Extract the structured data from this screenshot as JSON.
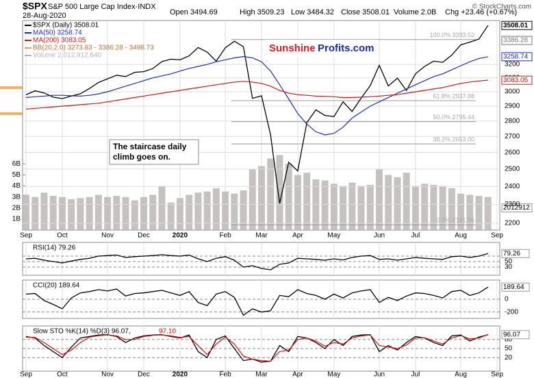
{
  "chart_data": [
    {
      "type": "line",
      "symbol": "$SPX",
      "title": "S&P 500 Large Cap Index·INDX",
      "date": "28-Aug-2020",
      "quote": [
        "Open 3494.69",
        "High 3509.23",
        "Low 3484.32",
        "Close 3508.01",
        "Volume 2.0B",
        "Chg +23.46 (+0.67%)"
      ],
      "copyright": "© StockCharts.com",
      "logo": [
        "Sunshine",
        "Profits.com"
      ],
      "annotation": [
        "The staircase daily",
        "climb goes on."
      ],
      "indicator_labels": [
        "BB(20,2.0) 3273.83 - 3386.28 - 3498.73"
      ],
      "categories": [
        "Sep",
        null,
        null,
        null,
        "Oct",
        null,
        null,
        null,
        null,
        "Nov",
        null,
        null,
        null,
        "Dec",
        null,
        null,
        null,
        "2020",
        null,
        null,
        null,
        null,
        "Feb",
        null,
        null,
        null,
        "Mar",
        null,
        null,
        null,
        "Apr",
        null,
        null,
        null,
        "May",
        null,
        null,
        null,
        null,
        "Jun",
        null,
        null,
        null,
        "Jul",
        null,
        null,
        null,
        null,
        "Aug",
        null,
        null,
        null,
        "Sep"
      ],
      "log": true,
      "ylim": [
        2165,
        3549
      ],
      "yticks": [
        2200,
        2300,
        2400,
        2500,
        2600,
        2700,
        2800,
        2900,
        3000,
        3100,
        3200
      ],
      "y2lim": [
        0,
        19
      ],
      "y2ticks": [
        {
          "value": 1,
          "label": "1B"
        },
        {
          "value": 2,
          "label": "2B"
        },
        {
          "value": 3,
          "label": "3B"
        },
        {
          "value": 4,
          "label": "4B"
        },
        {
          "value": 5,
          "label": "5B"
        },
        {
          "value": 6,
          "label": "6B"
        }
      ],
      "grid": true,
      "series": [
        {
          "name": "$SPX (Daily) 3508.01",
          "color": "#000000",
          "values": [
            2979,
            3007,
            2992,
            2962,
            2952,
            2970,
            2986,
            3023,
            3067,
            3093,
            3120,
            3110,
            3141,
            3146,
            3169,
            3221,
            3240,
            3235,
            3265,
            3330,
            3295,
            3225,
            3328,
            3380,
            3337,
            2954,
            2972,
            2711,
            2305,
            2541,
            2489,
            2790,
            2875,
            2837,
            2830,
            2930,
            2864,
            2955,
            3044,
            3193,
            3041,
            3098,
            3009,
            3130,
            3185,
            3225,
            3216,
            3271,
            3351,
            3373,
            3397,
            3508,
            null
          ]
        },
        {
          "name": "MA(50) 3258.74",
          "color": "#1f2fa8",
          "values": [
            2960,
            2965,
            2970,
            2975,
            2975,
            2972,
            2970,
            2975,
            2985,
            3000,
            3020,
            3040,
            3060,
            3080,
            3100,
            3115,
            3130,
            3150,
            3170,
            3185,
            3200,
            3220,
            3235,
            3250,
            3260,
            3250,
            3220,
            3150,
            3050,
            2950,
            2850,
            2780,
            2730,
            2710,
            2720,
            2760,
            2820,
            2860,
            2900,
            2930,
            2960,
            2990,
            3020,
            3050,
            3080,
            3110,
            3130,
            3160,
            3190,
            3220,
            3245,
            3259,
            null
          ]
        },
        {
          "name": "MA(200) 3083.05",
          "color": "#c41a1a",
          "values": [
            2880,
            2885,
            2890,
            2895,
            2900,
            2905,
            2910,
            2915,
            2920,
            2930,
            2940,
            2950,
            2960,
            2970,
            2980,
            2990,
            3000,
            3010,
            3020,
            3030,
            3040,
            3050,
            3060,
            3070,
            3075,
            3070,
            3060,
            3040,
            3010,
            2990,
            2980,
            2975,
            2970,
            2968,
            2965,
            2960,
            2960,
            2962,
            2965,
            2970,
            2975,
            2980,
            2990,
            3000,
            3010,
            3020,
            3030,
            3045,
            3060,
            3070,
            3078,
            3083,
            null
          ]
        },
        {
          "name": "Volume 2,012,912,640",
          "color": "#b9b3b3",
          "axis": "y2",
          "type": "bar",
          "values": [
            3.2,
            3.0,
            3.4,
            3.1,
            3.0,
            2.8,
            2.9,
            3.0,
            3.2,
            3.0,
            3.1,
            3.0,
            2.7,
            3.0,
            3.2,
            4.0,
            2.5,
            2.9,
            3.2,
            3.4,
            3.5,
            3.8,
            3.5,
            3.3,
            3.6,
            5.5,
            5.8,
            6.5,
            6.8,
            6.0,
            5.0,
            5.2,
            4.6,
            4.5,
            4.2,
            4.0,
            4.3,
            4.0,
            4.1,
            5.5,
            5.0,
            4.8,
            5.2,
            4.0,
            4.2,
            4.1,
            4.0,
            3.8,
            3.3,
            3.2,
            3.1,
            3.0,
            null
          ]
        }
      ],
      "fib_levels": [
        {
          "value": 3393.52,
          "label": "100.0% 3393.52"
        },
        {
          "value": 2937.88,
          "label": "61.8% 2937.88"
        },
        {
          "value": 2795.44,
          "label": "50.0% 2795.44"
        },
        {
          "value": 2653.0,
          "label": "38.2% 2653.00"
        },
        {
          "value": 2191.86,
          "label": "0.0% 2191.86"
        }
      ],
      "price_markers": [
        3508.01,
        3386.28,
        3258.74,
        3083.05
      ],
      "price_marker_colors": [
        "#000000",
        "#777777",
        "#1f2fa8",
        "#c41a1a"
      ],
      "volume_marker": {
        "value": 2.012912,
        "label": "2012912"
      }
    },
    {
      "type": "line",
      "title": "RSI(14) 79.26",
      "ylim": [
        0,
        120
      ],
      "yticks": [
        30,
        50,
        70
      ],
      "last_value": 79.26,
      "series": [
        {
          "color": "#000000",
          "values": [
            60,
            62,
            55,
            50,
            45,
            52,
            58,
            62,
            70,
            72,
            74,
            65,
            68,
            70,
            72,
            75,
            72,
            70,
            74,
            60,
            50,
            62,
            68,
            55,
            30,
            35,
            25,
            20,
            40,
            45,
            62,
            60,
            58,
            55,
            60,
            56,
            65,
            70,
            72,
            58,
            60,
            55,
            60,
            65,
            62,
            60,
            58,
            68,
            70,
            65,
            70,
            79.26,
            null
          ]
        }
      ]
    },
    {
      "type": "line",
      "title": "CCI(20) 189.64",
      "ylim": [
        -300,
        300
      ],
      "yticks": [
        -200,
        0
      ],
      "last_value": 189.64,
      "series": [
        {
          "color": "#000000",
          "values": [
            80,
            90,
            -20,
            -80,
            -150,
            20,
            100,
            120,
            150,
            130,
            160,
            50,
            90,
            100,
            120,
            140,
            100,
            60,
            120,
            -50,
            -100,
            80,
            120,
            30,
            -250,
            -150,
            -200,
            -180,
            60,
            40,
            150,
            90,
            60,
            0,
            80,
            20,
            100,
            130,
            150,
            -50,
            30,
            -20,
            50,
            100,
            90,
            60,
            20,
            120,
            140,
            60,
            100,
            189.64,
            null
          ]
        }
      ]
    },
    {
      "type": "line",
      "title": [
        "Slow STO %K(14) %D(3) 96.07,",
        "97.10"
      ],
      "ylim": [
        -25,
        125
      ],
      "yticks": [
        20,
        50,
        80
      ],
      "last_value": 96.07,
      "series": [
        {
          "color": "#000000",
          "values": [
            90,
            85,
            60,
            40,
            20,
            55,
            85,
            90,
            95,
            96,
            90,
            70,
            85,
            92,
            95,
            96,
            90,
            85,
            95,
            40,
            20,
            80,
            92,
            50,
            10,
            15,
            5,
            8,
            60,
            40,
            90,
            85,
            70,
            50,
            80,
            60,
            90,
            95,
            96,
            40,
            60,
            45,
            70,
            90,
            85,
            70,
            60,
            92,
            95,
            75,
            88,
            96.07,
            null
          ]
        },
        {
          "color": "#d01010",
          "values": [
            88,
            87,
            70,
            50,
            30,
            45,
            70,
            88,
            93,
            95,
            92,
            80,
            80,
            90,
            94,
            95,
            92,
            87,
            90,
            60,
            30,
            65,
            88,
            65,
            25,
            15,
            10,
            8,
            40,
            45,
            80,
            85,
            75,
            58,
            70,
            65,
            85,
            92,
            95,
            60,
            55,
            50,
            62,
            85,
            86,
            75,
            65,
            85,
            93,
            82,
            85,
            97.1,
            null
          ]
        }
      ]
    }
  ]
}
